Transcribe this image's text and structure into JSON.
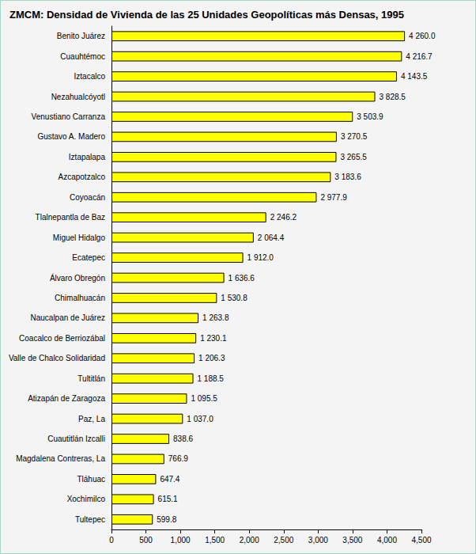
{
  "chart_data": {
    "type": "bar",
    "title": "ZMCM: Densidad de Vivienda de las 25 Unidades Geopolíticas más Densas, 1995",
    "orientation": "horizontal",
    "categories": [
      "Benito Juárez",
      "Cuauhtémoc",
      "Iztacalco",
      "Nezahualcóyotl",
      "Venustiano Carranza",
      "Gustavo A. Madero",
      "Iztapalapa",
      "Azcapotzalco",
      "Coyoacán",
      "Tlalnepantla de Baz",
      "Miguel Hidalgo",
      "Ecatepec",
      "Álvaro Obregón",
      "Chimalhuacán",
      "Naucalpan de Juárez",
      "Coacalco de Berriozábal",
      "Valle de Chalco Solidaridad",
      "Tultitlán",
      "Atizapán de Zaragoza",
      "Paz, La",
      "Cuautitlán Izcalli",
      "Magdalena Contreras, La",
      "Tláhuac",
      "Xochimilco",
      "Tultepec"
    ],
    "values": [
      4260.0,
      4216.7,
      4143.5,
      3828.5,
      3503.9,
      3270.5,
      3265.5,
      3183.6,
      2977.9,
      2246.2,
      2064.4,
      1912.0,
      1636.6,
      1530.8,
      1263.8,
      1230.1,
      1206.3,
      1188.5,
      1095.5,
      1037.0,
      838.6,
      766.9,
      647.4,
      615.1,
      599.8
    ],
    "value_labels": [
      "4 260.0",
      "4 216.7",
      "4 143.5",
      "3 828.5",
      "3 503.9",
      "3 270.5",
      "3 265.5",
      "3 183.6",
      "2 977.9",
      "2 246.2",
      "2 064.4",
      "1 912.0",
      "1 636.6",
      "1 530.8",
      "1 263.8",
      "1 230.1",
      "1 206.3",
      "1 188.5",
      "1 095.5",
      "1 037.0",
      "838.6",
      "766.9",
      "647.4",
      "615.1",
      "599.8"
    ],
    "color": "#ffff00",
    "data_labels": true,
    "xlim": [
      0,
      4500
    ],
    "xticks": [
      0,
      500,
      1000,
      1500,
      2000,
      2500,
      3000,
      3500,
      4000,
      4500
    ],
    "grid": false
  }
}
